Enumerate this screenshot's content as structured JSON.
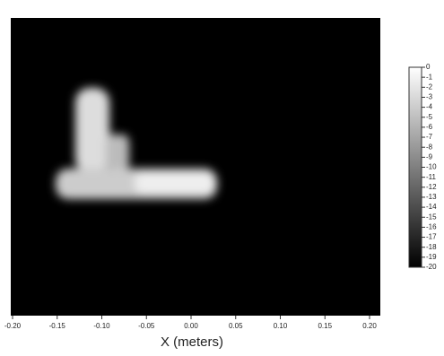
{
  "chart_data": {
    "type": "heatmap",
    "xlabel": "X (meters)",
    "xlim": [
      -0.2,
      0.2
    ],
    "xticks": [
      {
        "value": -0.2,
        "label": "-0.20"
      },
      {
        "value": -0.15,
        "label": "-0.15"
      },
      {
        "value": -0.1,
        "label": "-0.10"
      },
      {
        "value": -0.05,
        "label": "-0.05"
      },
      {
        "value": 0,
        "label": "0.00"
      },
      {
        "value": 0.05,
        "label": "0.05"
      },
      {
        "value": 0.1,
        "label": "0.10"
      },
      {
        "value": 0.15,
        "label": "0.15"
      },
      {
        "value": 0.2,
        "label": "0.20"
      }
    ],
    "colorbar_lim": [
      -20,
      0
    ],
    "colorbar_ticks": [
      0,
      -1,
      -2,
      -3,
      -4,
      -5,
      -6,
      -7,
      -8,
      -9,
      -10,
      -11,
      -12,
      -13,
      -14,
      -15,
      -16,
      -17,
      -18,
      -19,
      -20
    ]
  }
}
